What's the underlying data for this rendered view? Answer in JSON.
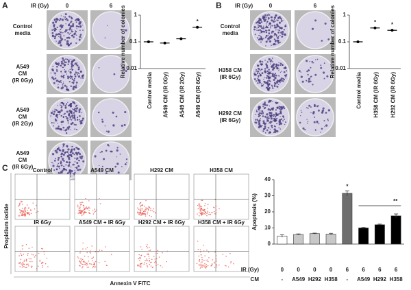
{
  "panel_labels": [
    "A",
    "B",
    "C"
  ],
  "panel_a": {
    "header": "IR (Gy)",
    "columns": [
      "0",
      "6"
    ],
    "rows": [
      [
        "Control",
        "media"
      ],
      [
        "A549",
        "CM",
        "(IR 0Gy)"
      ],
      [
        "A549",
        "CM",
        "(IR 2Gy)"
      ],
      [
        "A549",
        "CM",
        "(IR 6Gy)"
      ]
    ]
  },
  "panel_b": {
    "header": "IR (Gy)",
    "columns": [
      "0",
      "6"
    ],
    "rows": [
      [
        "Control",
        "media"
      ],
      [
        "H358 CM",
        "(IR 6Gy)"
      ],
      [
        "H292 CM",
        "(IR 6Gy)"
      ]
    ]
  },
  "panel_c": {
    "plots": [
      "Control",
      "A549 CM",
      "H292 CM",
      "H358 CM",
      "IR 6Gy",
      "A549 CM + IR 6Gy",
      "H292 CM + IR 6Gy",
      "H358 CM + IR 6Gy"
    ],
    "y_label": "Propidium iodide",
    "x_label": "Annexin V FITC"
  },
  "chart_data": [
    {
      "type": "dot",
      "y_label": "Relative number of colonies",
      "categories": [
        "Control media",
        "A549 CM (IR 0Gy)",
        "A549 CM (IR 2Gy)",
        "A549 CM (IR 6Gy)"
      ],
      "values": [
        0.1,
        0.09,
        0.13,
        0.35
      ],
      "color": "#000000",
      "ylim": [
        0.01,
        1
      ],
      "yticks": [
        0.01,
        0.1,
        1
      ],
      "log_scale": true,
      "annotations": [
        {
          "text": "*",
          "index": 3
        }
      ]
    },
    {
      "type": "dot",
      "y_label": "Relative number of colonies",
      "categories": [
        "Control media",
        "H358 CM (IR 6Gy)",
        "H292 CM (IR 6Gy)"
      ],
      "values": [
        0.1,
        0.33,
        0.27
      ],
      "color": "#000000",
      "ylim": [
        0.01,
        1
      ],
      "yticks": [
        0.01,
        0.1,
        1
      ],
      "log_scale": true,
      "annotations": [
        {
          "text": "*",
          "index": 1
        },
        {
          "text": "*",
          "index": 2
        }
      ]
    },
    {
      "type": "bar",
      "y_label": "Apoptosis (%)",
      "category_rows": [
        {
          "name": "IR (Gy)",
          "labels": [
            "0",
            "0",
            "0",
            "0",
            "6",
            "6",
            "6",
            "6"
          ]
        },
        {
          "name": "CM",
          "labels": [
            "-",
            "A549",
            "H292",
            "H358",
            "-",
            "A549",
            "H292",
            "H358"
          ]
        }
      ],
      "values": [
        5,
        6,
        6.5,
        6.2,
        31.5,
        10,
        12,
        17.5
      ],
      "errors": [
        0.8,
        0.3,
        0.3,
        0.5,
        1.5,
        0.3,
        0.4,
        1.2
      ],
      "colors": [
        "#ffffff",
        "#c8c8c8",
        "#c8c8c8",
        "#c8c8c8",
        "#6e6e6e",
        "#000000",
        "#000000",
        "#000000"
      ],
      "ylim": [
        0,
        40
      ],
      "yticks": [
        0,
        10,
        20,
        30,
        40
      ],
      "annotations": [
        {
          "text": "*",
          "index": 4
        },
        {
          "text": "**",
          "from": 5,
          "to": 7
        }
      ]
    }
  ]
}
